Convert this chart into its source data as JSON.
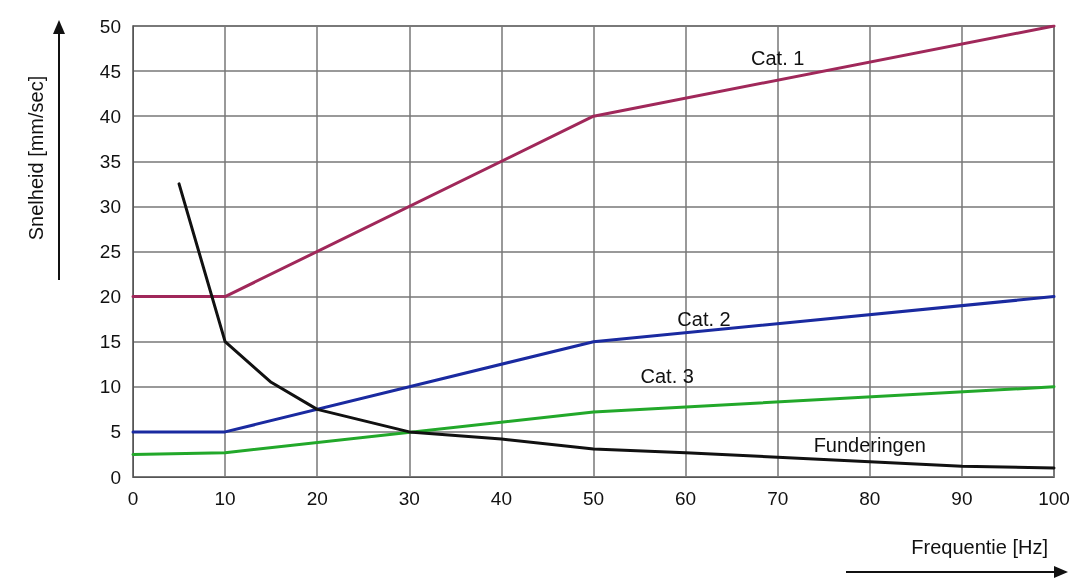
{
  "chart_data": {
    "type": "line",
    "xlabel": "Frequentie [Hz]",
    "ylabel": "Snelheid [mm/sec]",
    "xlim": [
      0,
      100
    ],
    "xticks": [
      0,
      10,
      20,
      30,
      40,
      50,
      60,
      70,
      80,
      90,
      100
    ],
    "ylim": [
      0,
      50
    ],
    "yticks": [
      0,
      5,
      10,
      15,
      20,
      25,
      30,
      35,
      40,
      45,
      50
    ],
    "grid": true,
    "legend": false,
    "marker": "none",
    "line_style": "solid",
    "series": [
      {
        "name": "Cat. 1",
        "color": "#a0285a",
        "x": [
          0,
          10,
          50,
          100
        ],
        "values": [
          20,
          20,
          40,
          50
        ]
      },
      {
        "name": "Cat. 2",
        "color": "#1a2aa0",
        "x": [
          0,
          10,
          50,
          100
        ],
        "values": [
          5,
          5,
          15,
          20
        ]
      },
      {
        "name": "Cat. 3",
        "color": "#22a82a",
        "x": [
          0,
          10,
          50,
          100
        ],
        "values": [
          2.5,
          2.7,
          7.2,
          10
        ]
      },
      {
        "name": "Funderingen",
        "color": "#111111",
        "x": [
          5,
          10,
          15,
          20,
          30,
          40,
          50,
          60,
          70,
          80,
          90,
          100
        ],
        "values": [
          32.5,
          15,
          10.5,
          7.5,
          5,
          4.2,
          3.1,
          2.7,
          2.2,
          1.7,
          1.2,
          1
        ]
      }
    ]
  }
}
